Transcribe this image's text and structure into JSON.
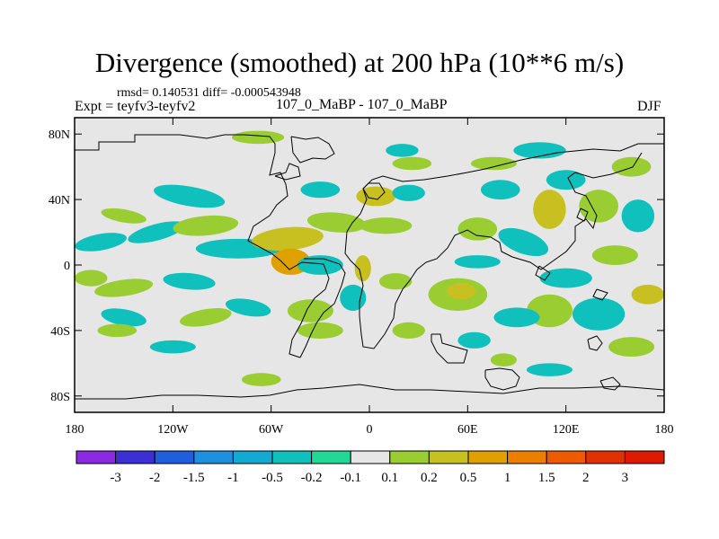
{
  "header": {
    "title": "Divergence (smoothed) at 200 hPa (10**6 m/s)",
    "rmsd_line": "rmsd= 0.140531 diff= -0.000543948",
    "experiment": "Expt = teyfv3-teyfv2",
    "case": "107_0_MaBP - 107_0_MaBP",
    "season": "DJF"
  },
  "chart_data": {
    "type": "heatmap",
    "title": "Divergence (smoothed) at 200 hPa (10**6 m/s)",
    "xlabel": "",
    "ylabel": "",
    "xlim": [
      -180,
      180
    ],
    "ylim": [
      -90,
      90
    ],
    "x_ticks": [
      {
        "value": -180,
        "label": "180"
      },
      {
        "value": -120,
        "label": "120W"
      },
      {
        "value": -60,
        "label": "60W"
      },
      {
        "value": 0,
        "label": "0"
      },
      {
        "value": 60,
        "label": "60E"
      },
      {
        "value": 120,
        "label": "120E"
      },
      {
        "value": 180,
        "label": "180"
      }
    ],
    "y_ticks": [
      {
        "value": 80,
        "label": "80N"
      },
      {
        "value": 40,
        "label": "40N"
      },
      {
        "value": 0,
        "label": "0"
      },
      {
        "value": -40,
        "label": "40S"
      },
      {
        "value": -80,
        "label": "80S"
      }
    ],
    "colorbar": {
      "labels": [
        "-3",
        "-2",
        "-1.5",
        "-1",
        "-0.5",
        "-0.2",
        "-0.1",
        "0.1",
        "0.2",
        "0.5",
        "1",
        "1.5",
        "2",
        "3"
      ],
      "colors": [
        "#8a2be2",
        "#3c2fd6",
        "#1f5fde",
        "#1e90e0",
        "#12a9d2",
        "#0fc0bd",
        "#22d896",
        "#e6e6e6",
        "#9acd32",
        "#c8c020",
        "#e0a000",
        "#ee7e00",
        "#ee5a00",
        "#e03200",
        "#e01a00"
      ]
    },
    "background_color": "#e6e6e6",
    "blobs": [
      {
        "lon": -164,
        "lat": 14,
        "rlon": 16,
        "rlat": 5,
        "rot": -10,
        "level": -0.2
      },
      {
        "lon": -150,
        "lat": 30,
        "rlon": 14,
        "rlat": 4,
        "rot": 10,
        "level": 0.2
      },
      {
        "lon": -130,
        "lat": 20,
        "rlon": 18,
        "rlat": 5,
        "rot": -15,
        "level": -0.2
      },
      {
        "lon": -110,
        "lat": 42,
        "rlon": 22,
        "rlat": 6,
        "rot": 10,
        "level": -0.2
      },
      {
        "lon": -100,
        "lat": 24,
        "rlon": 20,
        "rlat": 6,
        "rot": -5,
        "level": 0.2
      },
      {
        "lon": -80,
        "lat": 10,
        "rlon": 26,
        "rlat": 6,
        "rot": 0,
        "level": -0.2
      },
      {
        "lon": -170,
        "lat": -8,
        "rlon": 10,
        "rlat": 5,
        "rot": 0,
        "level": 0.2
      },
      {
        "lon": -150,
        "lat": -14,
        "rlon": 18,
        "rlat": 5,
        "rot": -8,
        "level": 0.2
      },
      {
        "lon": -110,
        "lat": -10,
        "rlon": 16,
        "rlat": 5,
        "rot": 5,
        "level": -0.2
      },
      {
        "lon": -150,
        "lat": -32,
        "rlon": 14,
        "rlat": 5,
        "rot": 10,
        "level": -0.2
      },
      {
        "lon": -100,
        "lat": -32,
        "rlon": 16,
        "rlat": 5,
        "rot": -10,
        "level": 0.2
      },
      {
        "lon": -74,
        "lat": -26,
        "rlon": 14,
        "rlat": 5,
        "rot": 10,
        "level": -0.2
      },
      {
        "lon": -30,
        "lat": 46,
        "rlon": 12,
        "rlat": 5,
        "rot": 0,
        "level": -0.2
      },
      {
        "lon": -50,
        "lat": 16,
        "rlon": 22,
        "rlat": 7,
        "rot": -5,
        "level": 0.5
      },
      {
        "lon": -48,
        "lat": 2,
        "rlon": 12,
        "rlat": 8,
        "rot": 0,
        "level": 1
      },
      {
        "lon": -30,
        "lat": 0,
        "rlon": 14,
        "rlat": 6,
        "rot": 0,
        "level": -0.2
      },
      {
        "lon": -36,
        "lat": -28,
        "rlon": 14,
        "rlat": 7,
        "rot": 0,
        "level": 0.2
      },
      {
        "lon": -10,
        "lat": -20,
        "rlon": 8,
        "rlat": 8,
        "rot": 0,
        "level": -0.2
      },
      {
        "lon": -4,
        "lat": -2,
        "rlon": 5,
        "rlat": 8,
        "rot": 0,
        "level": 0.5
      },
      {
        "lon": -68,
        "lat": 78,
        "rlon": 16,
        "rlat": 4,
        "rot": 0,
        "level": 0.2
      },
      {
        "lon": -20,
        "lat": 26,
        "rlon": 18,
        "rlat": 6,
        "rot": 5,
        "level": 0.2
      },
      {
        "lon": 4,
        "lat": 42,
        "rlon": 12,
        "rlat": 6,
        "rot": 0,
        "level": 0.5
      },
      {
        "lon": 24,
        "lat": 44,
        "rlon": 10,
        "rlat": 5,
        "rot": 0,
        "level": -0.2
      },
      {
        "lon": 10,
        "lat": 24,
        "rlon": 16,
        "rlat": 5,
        "rot": 0,
        "level": 0.2
      },
      {
        "lon": 26,
        "lat": 62,
        "rlon": 12,
        "rlat": 4,
        "rot": 0,
        "level": 0.2
      },
      {
        "lon": 20,
        "lat": 70,
        "rlon": 10,
        "rlat": 4,
        "rot": 0,
        "level": -0.2
      },
      {
        "lon": 16,
        "lat": -10,
        "rlon": 10,
        "rlat": 5,
        "rot": 0,
        "level": 0.2
      },
      {
        "lon": 24,
        "lat": -40,
        "rlon": 10,
        "rlat": 5,
        "rot": 0,
        "level": 0.2
      },
      {
        "lon": 54,
        "lat": -18,
        "rlon": 18,
        "rlat": 10,
        "rot": 0,
        "level": 0.2
      },
      {
        "lon": 56,
        "lat": -16,
        "rlon": 9,
        "rlat": 5,
        "rot": 0,
        "level": 0.5
      },
      {
        "lon": 66,
        "lat": 2,
        "rlon": 14,
        "rlat": 4,
        "rot": 0,
        "level": -0.2
      },
      {
        "lon": 66,
        "lat": 22,
        "rlon": 12,
        "rlat": 7,
        "rot": 0,
        "level": 0.2
      },
      {
        "lon": 80,
        "lat": 46,
        "rlon": 12,
        "rlat": 6,
        "rot": 0,
        "level": -0.2
      },
      {
        "lon": 76,
        "lat": 62,
        "rlon": 14,
        "rlat": 4,
        "rot": 0,
        "level": 0.2
      },
      {
        "lon": 94,
        "lat": 14,
        "rlon": 16,
        "rlat": 7,
        "rot": 20,
        "level": -0.2
      },
      {
        "lon": 104,
        "lat": 70,
        "rlon": 16,
        "rlat": 5,
        "rot": 0,
        "level": -0.2
      },
      {
        "lon": 110,
        "lat": 34,
        "rlon": 10,
        "rlat": 12,
        "rot": 0,
        "level": 0.5
      },
      {
        "lon": 120,
        "lat": 52,
        "rlon": 12,
        "rlat": 6,
        "rot": 0,
        "level": -0.2
      },
      {
        "lon": 140,
        "lat": 36,
        "rlon": 12,
        "rlat": 10,
        "rot": 0,
        "level": 0.2
      },
      {
        "lon": 160,
        "lat": 60,
        "rlon": 12,
        "rlat": 6,
        "rot": 0,
        "level": 0.2
      },
      {
        "lon": 164,
        "lat": 30,
        "rlon": 10,
        "rlat": 10,
        "rot": 0,
        "level": -0.2
      },
      {
        "lon": 150,
        "lat": 6,
        "rlon": 14,
        "rlat": 6,
        "rot": 0,
        "level": 0.2
      },
      {
        "lon": 120,
        "lat": -8,
        "rlon": 16,
        "rlat": 6,
        "rot": 0,
        "level": -0.2
      },
      {
        "lon": 110,
        "lat": -28,
        "rlon": 14,
        "rlat": 10,
        "rot": 0,
        "level": 0.2
      },
      {
        "lon": 140,
        "lat": -30,
        "rlon": 16,
        "rlat": 10,
        "rot": 0,
        "level": -0.2
      },
      {
        "lon": 90,
        "lat": -32,
        "rlon": 14,
        "rlat": 6,
        "rot": 0,
        "level": -0.2
      },
      {
        "lon": 170,
        "lat": -18,
        "rlon": 10,
        "rlat": 6,
        "rot": 0,
        "level": 0.5
      },
      {
        "lon": 160,
        "lat": -50,
        "rlon": 14,
        "rlat": 6,
        "rot": 0,
        "level": 0.2
      },
      {
        "lon": 110,
        "lat": -64,
        "rlon": 14,
        "rlat": 4,
        "rot": 0,
        "level": -0.2
      },
      {
        "lon": 64,
        "lat": -46,
        "rlon": 10,
        "rlat": 5,
        "rot": 0,
        "level": -0.2
      },
      {
        "lon": 82,
        "lat": -58,
        "rlon": 8,
        "rlat": 4,
        "rot": 0,
        "level": 0.2
      },
      {
        "lon": -154,
        "lat": -40,
        "rlon": 12,
        "rlat": 4,
        "rot": 0,
        "level": 0.2
      },
      {
        "lon": -120,
        "lat": -50,
        "rlon": 14,
        "rlat": 4,
        "rot": 0,
        "level": -0.2
      },
      {
        "lon": -66,
        "lat": -70,
        "rlon": 12,
        "rlat": 4,
        "rot": 0,
        "level": 0.2
      },
      {
        "lon": -30,
        "lat": -40,
        "rlon": 14,
        "rlat": 5,
        "rot": 0,
        "level": 0.2
      }
    ]
  }
}
